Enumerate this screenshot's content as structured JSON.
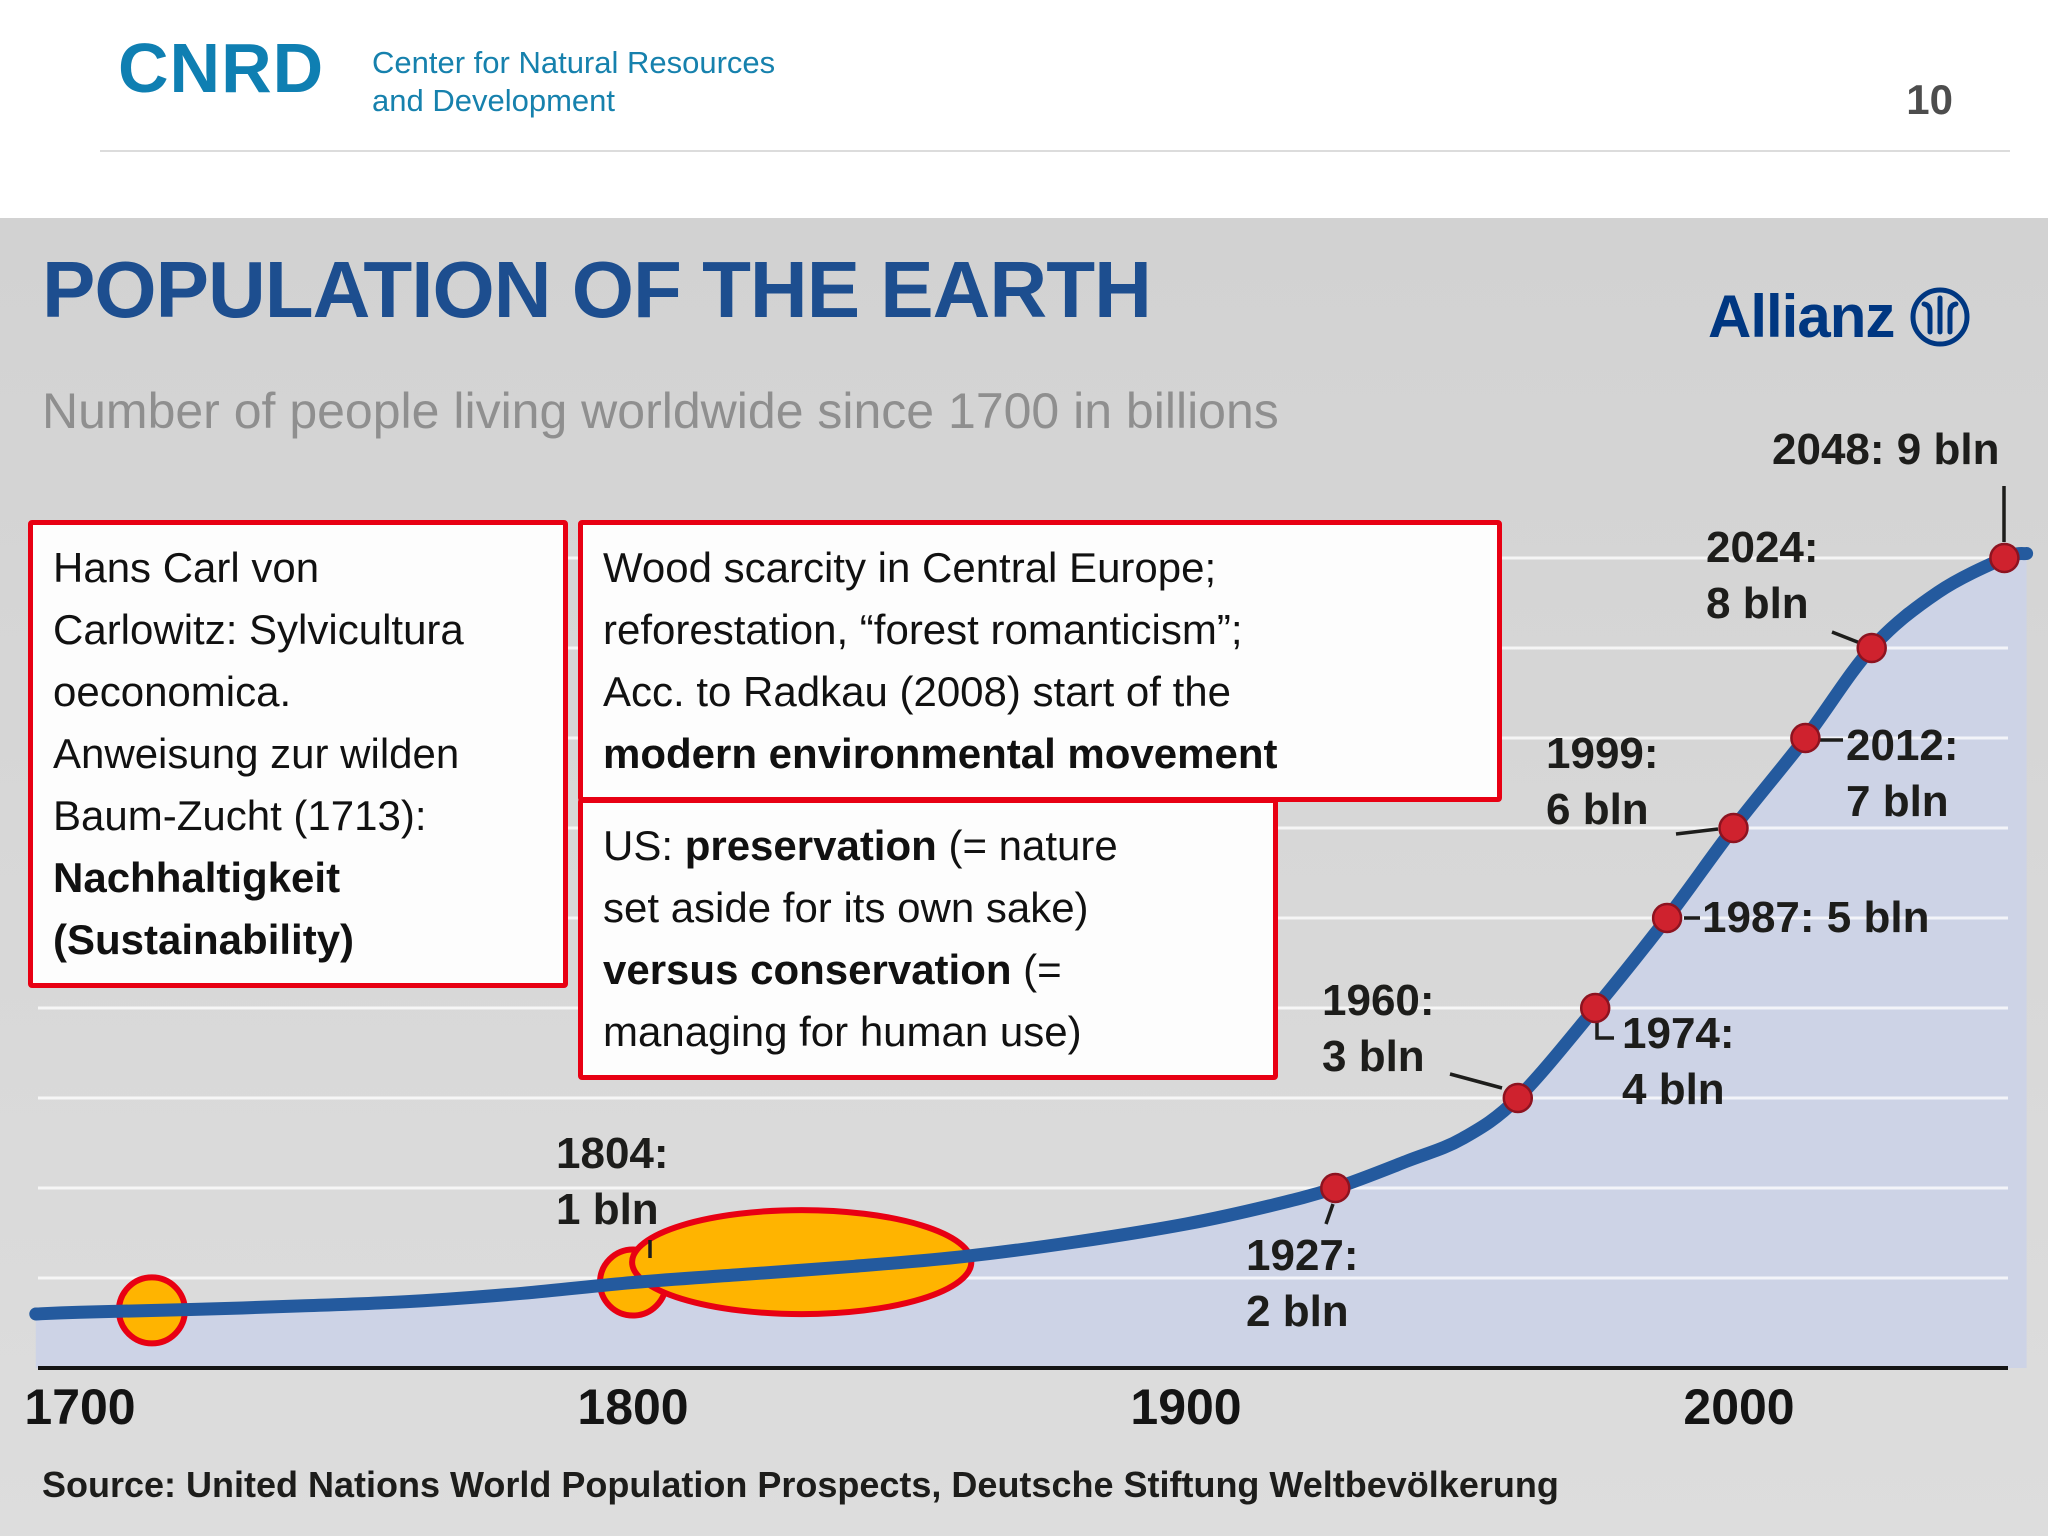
{
  "header": {
    "logo": "CNRD",
    "org_line1": "Center for Natural Resources",
    "org_line2": "and Development",
    "page_number": "10"
  },
  "slide": {
    "title": "POPULATION OF THE EARTH",
    "subtitle": "Number of people living worldwide since 1700 in billions",
    "brand": "Allianz",
    "source": "Source: United Nations World Population Prospects, Deutsche Stiftung Weltbevölkerung"
  },
  "annotations": {
    "carlowitz": {
      "text": "Hans Carl von\nCarlowitz: Sylvicultura\noeconomica.\nAnweisung zur wilden\nBaum-Zucht (1713):\n",
      "bold": "Nachhaltigkeit\n(Sustainability)"
    },
    "wood": {
      "text": "Wood scarcity in Central Europe;\nreforestation, “forest romanticism”;\nAcc. to Radkau (2008) start of the\n",
      "bold": "modern environmental movement"
    },
    "us": {
      "p1": "US: ",
      "b1": "preservation",
      "p2": " (= nature\nset aside for its own sake)\n",
      "b2": "versus conservation",
      "p3": " (=\nmanaging for human use)"
    }
  },
  "chart_data": {
    "type": "line",
    "title": "POPULATION OF THE EARTH",
    "subtitle": "Number of people living worldwide since 1700 in billions",
    "xlim": [
      1692,
      2055
    ],
    "ylim": [
      0,
      9.5
    ],
    "x_ticks": [
      1700,
      1800,
      1900,
      2000
    ],
    "milestones": [
      {
        "year": 1804,
        "value": 1,
        "label": "1804: 1 bln"
      },
      {
        "year": 1927,
        "value": 2,
        "label": "1927: 2 bln"
      },
      {
        "year": 1960,
        "value": 3,
        "label": "1960: 3 bln"
      },
      {
        "year": 1974,
        "value": 4,
        "label": "1974: 4 bln"
      },
      {
        "year": 1987,
        "value": 5,
        "label": "1987: 5 bln"
      },
      {
        "year": 1999,
        "value": 6,
        "label": "1999: 6 bln"
      },
      {
        "year": 2012,
        "value": 7,
        "label": "2012: 7 bln"
      },
      {
        "year": 2024,
        "value": 8,
        "label": "2024: 8 bln"
      },
      {
        "year": 2048,
        "value": 9,
        "label": "2048: 9 bln"
      }
    ],
    "curve": {
      "years": [
        1692,
        1700,
        1720,
        1740,
        1760,
        1780,
        1800,
        1820,
        1840,
        1860,
        1880,
        1900,
        1915,
        1927,
        1940,
        1950,
        1960,
        1974,
        1987,
        1999,
        2012,
        2024,
        2036,
        2048,
        2052
      ],
      "values": [
        0.6,
        0.62,
        0.65,
        0.69,
        0.74,
        0.83,
        0.95,
        1.04,
        1.13,
        1.24,
        1.4,
        1.6,
        1.8,
        2.0,
        2.3,
        2.55,
        3.0,
        4.0,
        5.0,
        6.0,
        7.0,
        8.0,
        8.62,
        9.0,
        9.05
      ]
    },
    "highlights": [
      {
        "shape": "circle",
        "year": 1713
      },
      {
        "shape": "circle",
        "year": 1800
      },
      {
        "shape": "ellipse",
        "year_start": 1802,
        "year_end": 1859
      }
    ],
    "colors": {
      "line": "#245a9e",
      "area": "#cdd3e6",
      "dot": "#cf222e",
      "highlight_fill": "#ffb400",
      "highlight_stroke": "#e80013",
      "annotation_border": "#e80013",
      "title": "#1d4e8f",
      "brand": "#003781"
    }
  }
}
